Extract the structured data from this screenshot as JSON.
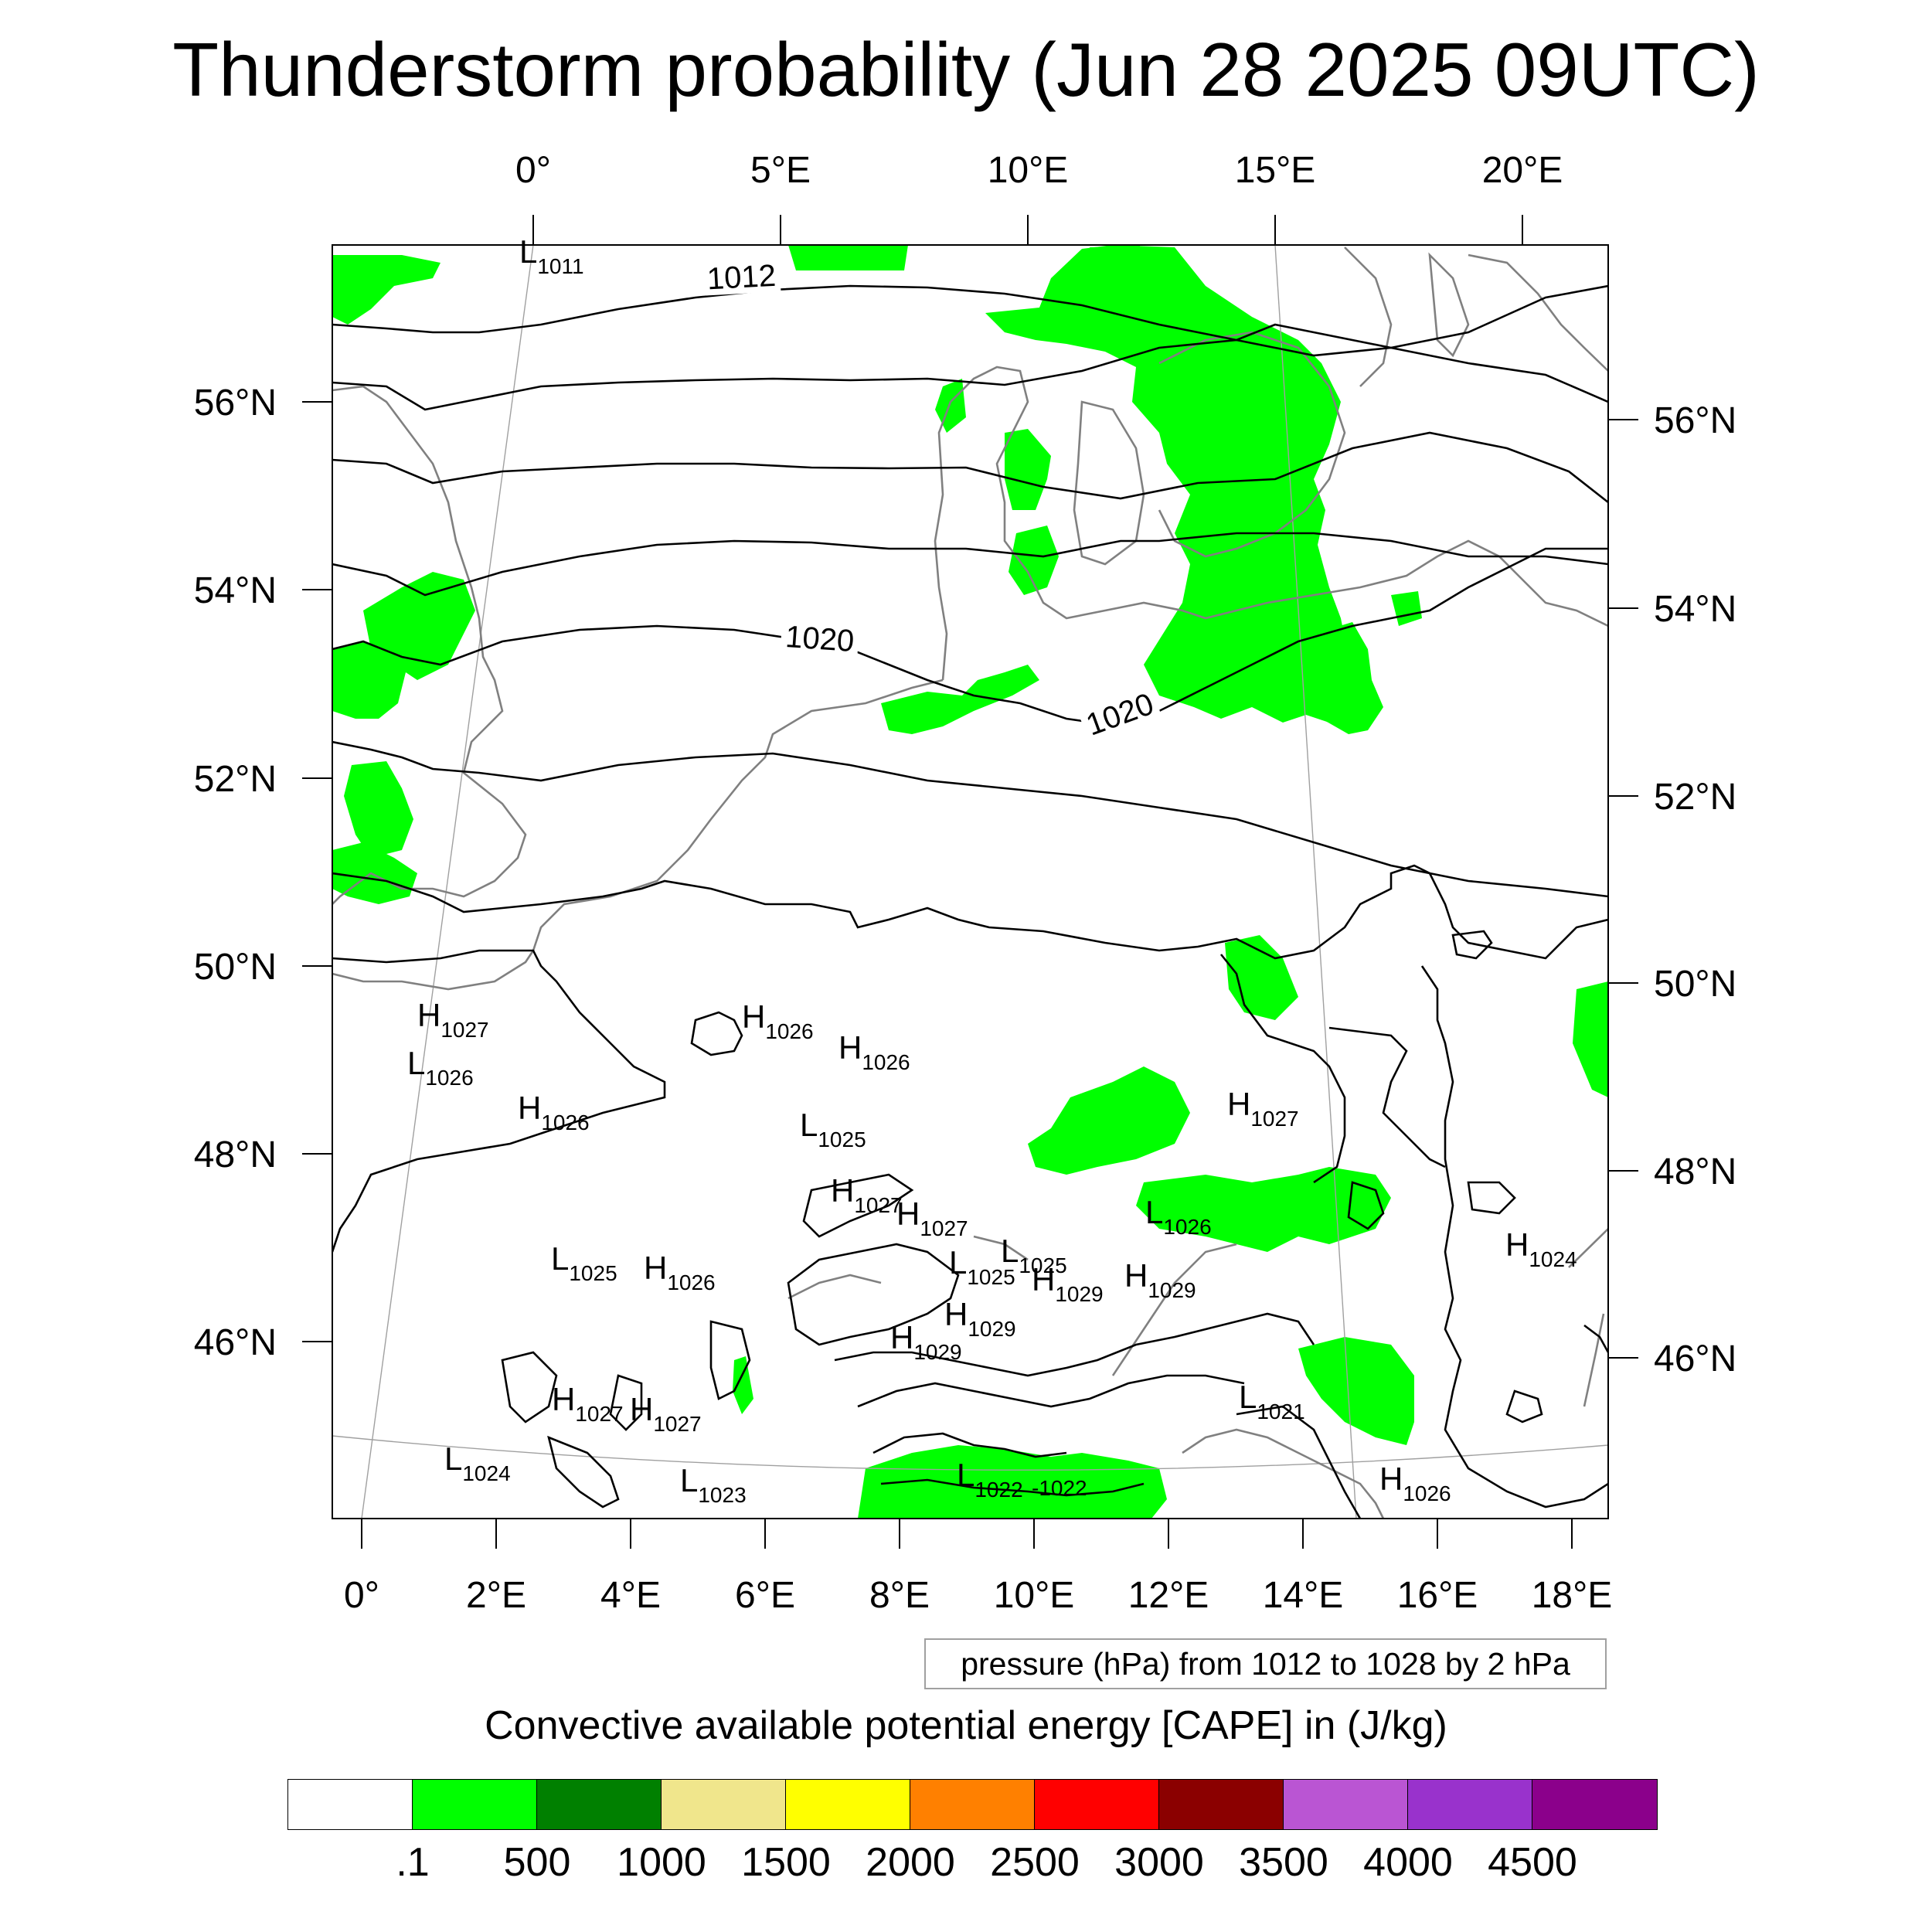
{
  "title": "Thunderstorm probability (Jun 28 2025 09UTC)",
  "map": {
    "top_lon_labels": [
      "0°",
      "5°E",
      "10°E",
      "15°E",
      "20°E"
    ],
    "bottom_lon_labels": [
      "0°",
      "2°E",
      "4°E",
      "6°E",
      "8°E",
      "10°E",
      "12°E",
      "14°E",
      "16°E",
      "18°E"
    ],
    "left_lat_labels": [
      "56°N",
      "54°N",
      "52°N",
      "50°N",
      "48°N",
      "46°N"
    ],
    "right_lat_labels": [
      "56°N",
      "54°N",
      "52°N",
      "50°N",
      "48°N",
      "46°N"
    ],
    "isobar_labels": [
      "1012",
      "1020",
      "1020"
    ],
    "pressure_centers": [
      {
        "type": "L",
        "value": "1011"
      },
      {
        "type": "H",
        "value": "1027"
      },
      {
        "type": "L",
        "value": "1026"
      },
      {
        "type": "H",
        "value": "1026"
      },
      {
        "type": "H",
        "value": "1026"
      },
      {
        "type": "H",
        "value": "1026"
      },
      {
        "type": "L",
        "value": "1025"
      },
      {
        "type": "H",
        "value": "1027"
      },
      {
        "type": "H",
        "value": "1027"
      },
      {
        "type": "H",
        "value": "1027"
      },
      {
        "type": "L",
        "value": "1026"
      },
      {
        "type": "L",
        "value": "1025"
      },
      {
        "type": "L",
        "value": "1025"
      },
      {
        "type": "H",
        "value": "1029"
      },
      {
        "type": "H",
        "value": "1029"
      },
      {
        "type": "H",
        "value": "1029"
      },
      {
        "type": "H",
        "value": "1029"
      },
      {
        "type": "L",
        "value": "1025"
      },
      {
        "type": "H",
        "value": "1026"
      },
      {
        "type": "H",
        "value": "1024"
      },
      {
        "type": "H",
        "value": "1027"
      },
      {
        "type": "H",
        "value": "1027"
      },
      {
        "type": "L",
        "value": "1024"
      },
      {
        "type": "L",
        "value": "1023"
      },
      {
        "type": "L",
        "value": "1022"
      },
      {
        "type": "",
        "value": "1022"
      },
      {
        "type": "L",
        "value": "1021"
      },
      {
        "type": "H",
        "value": "1026"
      }
    ],
    "colors": {
      "cape_fill": "#00ff00",
      "isobar": "#000000",
      "coastline": "#808080",
      "graticule": "#a0a0a0"
    }
  },
  "info_box": "pressure (hPa) from 1012 to 1028 by 2 hPa",
  "colorbar": {
    "title": "Convective available potential energy [CAPE] in (J/kg)",
    "colors": [
      "#ffffff",
      "#00ff00",
      "#008000",
      "#f0e68c",
      "#ffff00",
      "#ff8000",
      "#ff0000",
      "#8b0000",
      "#ba55d3",
      "#9932cc",
      "#8b008b"
    ],
    "labels": [
      ".1",
      "500",
      "1000",
      "1500",
      "2000",
      "2500",
      "3000",
      "3500",
      "4000",
      "4500"
    ]
  }
}
